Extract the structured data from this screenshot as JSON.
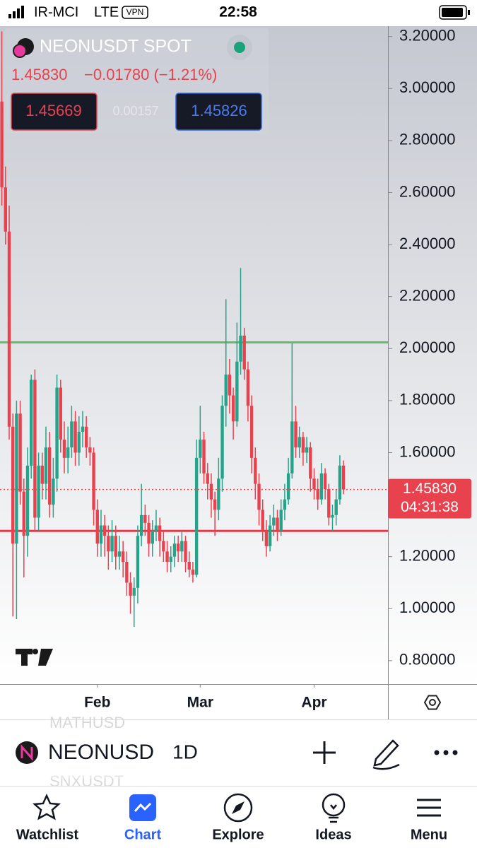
{
  "status_bar": {
    "carrier": "IR-MCI",
    "network": "LTE",
    "vpn": "VPN",
    "time": "22:58"
  },
  "chart_data": {
    "type": "candlestick",
    "symbol": "NEONUSDT SPOT",
    "last_price": {
      "value": 1.4583,
      "label": "1.45830"
    },
    "change": "−0.01780 (−1.21%)",
    "bid": "1.45669",
    "spread": "0.00157",
    "ask": "1.45826",
    "countdown": "04:31:38",
    "up_color": "#26a48b",
    "down_color": "#e8424f",
    "open": [
      2.95,
      2.62,
      2.45,
      1.7,
      1.25,
      1.75,
      1.45,
      1.28,
      1.55,
      1.88,
      1.35,
      1.55,
      1.48,
      1.62,
      1.4,
      1.5,
      1.85,
      1.65,
      1.58,
      1.62,
      1.72,
      1.6,
      1.68,
      1.7,
      1.62,
      1.6,
      1.38,
      1.25,
      1.32,
      1.28,
      1.22,
      1.28,
      1.2,
      1.22,
      1.18,
      1.1,
      1.05,
      1.08,
      1.28,
      1.36,
      1.33,
      1.25,
      1.3,
      1.32,
      1.26,
      1.22,
      1.18,
      1.2,
      1.25,
      1.22,
      1.26,
      1.18,
      1.15,
      1.13,
      1.58,
      1.65,
      1.52,
      1.48,
      1.42,
      1.38,
      1.5,
      1.78,
      1.9,
      1.82,
      1.72,
      1.95,
      2.05,
      1.92,
      1.78,
      1.58,
      1.48,
      1.38,
      1.3,
      1.24,
      1.32,
      1.35,
      1.3,
      1.38,
      1.42,
      1.52,
      1.72,
      1.62,
      1.66,
      1.6,
      1.62,
      1.5,
      1.46,
      1.42,
      1.52,
      1.46,
      1.35,
      1.36,
      1.42,
      1.55
    ],
    "high": [
      3.22,
      2.7,
      2.55,
      1.75,
      1.8,
      1.8,
      1.5,
      1.62,
      1.9,
      1.92,
      1.6,
      1.6,
      1.7,
      1.68,
      1.58,
      1.9,
      1.88,
      1.72,
      1.7,
      1.78,
      1.76,
      1.74,
      1.76,
      1.74,
      1.66,
      1.62,
      1.42,
      1.38,
      1.36,
      1.32,
      1.34,
      1.32,
      1.28,
      1.26,
      1.22,
      1.14,
      1.12,
      1.32,
      1.48,
      1.4,
      1.36,
      1.34,
      1.38,
      1.35,
      1.3,
      1.26,
      1.24,
      1.28,
      1.28,
      1.3,
      1.28,
      1.22,
      1.18,
      1.65,
      1.78,
      1.68,
      1.56,
      1.52,
      1.45,
      1.58,
      1.82,
      2.19,
      1.96,
      1.85,
      2.1,
      2.31,
      2.08,
      1.95,
      1.82,
      1.62,
      1.52,
      1.42,
      1.34,
      1.36,
      1.4,
      1.38,
      1.42,
      1.48,
      1.58,
      2.02,
      1.78,
      1.7,
      1.68,
      1.66,
      1.64,
      1.54,
      1.5,
      1.56,
      1.54,
      1.48,
      1.4,
      1.46,
      1.59,
      1.57
    ],
    "low": [
      2.55,
      2.4,
      1.65,
      0.97,
      0.96,
      1.4,
      1.12,
      1.2,
      1.5,
      1.3,
      1.3,
      1.42,
      1.42,
      1.35,
      1.35,
      1.45,
      1.6,
      1.52,
      1.52,
      1.58,
      1.55,
      1.55,
      1.62,
      1.58,
      1.55,
      1.32,
      1.2,
      1.2,
      1.2,
      1.15,
      1.18,
      1.15,
      1.15,
      1.12,
      1.05,
      0.98,
      0.93,
      1.02,
      1.24,
      1.28,
      1.2,
      1.2,
      1.26,
      1.2,
      1.18,
      1.14,
      1.14,
      1.16,
      1.18,
      1.18,
      1.14,
      1.12,
      1.1,
      1.12,
      1.52,
      1.48,
      1.42,
      1.35,
      1.28,
      1.34,
      1.45,
      1.7,
      1.75,
      1.65,
      1.7,
      1.9,
      1.88,
      1.72,
      1.52,
      1.42,
      1.32,
      1.26,
      1.2,
      1.22,
      1.28,
      1.26,
      1.28,
      1.34,
      1.4,
      1.5,
      1.58,
      1.58,
      1.55,
      1.56,
      1.45,
      1.42,
      1.38,
      1.4,
      1.42,
      1.32,
      1.3,
      1.32,
      1.4,
      1.44
    ],
    "close": [
      2.62,
      2.45,
      1.7,
      1.25,
      1.75,
      1.45,
      1.28,
      1.55,
      1.88,
      1.35,
      1.55,
      1.48,
      1.62,
      1.4,
      1.5,
      1.85,
      1.65,
      1.58,
      1.62,
      1.72,
      1.6,
      1.68,
      1.7,
      1.62,
      1.6,
      1.38,
      1.25,
      1.32,
      1.28,
      1.22,
      1.28,
      1.2,
      1.22,
      1.18,
      1.1,
      1.05,
      1.08,
      1.28,
      1.36,
      1.33,
      1.25,
      1.3,
      1.32,
      1.26,
      1.22,
      1.18,
      1.2,
      1.25,
      1.22,
      1.26,
      1.18,
      1.15,
      1.13,
      1.58,
      1.65,
      1.52,
      1.48,
      1.42,
      1.38,
      1.5,
      1.78,
      1.9,
      1.82,
      1.72,
      1.95,
      2.05,
      1.92,
      1.78,
      1.58,
      1.48,
      1.38,
      1.3,
      1.24,
      1.32,
      1.35,
      1.3,
      1.38,
      1.42,
      1.52,
      1.72,
      1.62,
      1.66,
      1.6,
      1.62,
      1.5,
      1.46,
      1.42,
      1.52,
      1.46,
      1.35,
      1.36,
      1.42,
      1.55,
      1.4583
    ],
    "hlines": [
      {
        "value": 2.024,
        "color": "#5fbf63"
      },
      {
        "value": 1.299,
        "color": "#e23a48"
      }
    ],
    "xlim": [
      -0.5,
      105.1
    ],
    "xticks": [
      {
        "value": 26,
        "label": "Feb"
      },
      {
        "value": 54,
        "label": "Mar"
      },
      {
        "value": 85,
        "label": "Apr"
      }
    ],
    "ylim": [
      0.71,
      3.24
    ],
    "yticks": [
      {
        "value": 0.8,
        "label": "0.80000"
      },
      {
        "value": 1,
        "label": "1.00000"
      },
      {
        "value": 1.2,
        "label": "1.20000"
      },
      {
        "value": 1.4,
        "label": "1.40000"
      },
      {
        "value": 1.6,
        "label": "1.60000"
      },
      {
        "value": 1.8,
        "label": "1.80000"
      },
      {
        "value": 2,
        "label": "2.00000"
      },
      {
        "value": 2.2,
        "label": "2.20000"
      },
      {
        "value": 2.4,
        "label": "2.40000"
      },
      {
        "value": 2.6,
        "label": "2.60000"
      },
      {
        "value": 2.8,
        "label": "2.80000"
      },
      {
        "value": 3,
        "label": "3.00000"
      },
      {
        "value": 3.2,
        "label": "3.20000"
      }
    ]
  },
  "toolbar": {
    "symbol": "NEONUSD",
    "interval": "1D",
    "scroll_hints": [
      "MATHUSD",
      "SNXUSDT"
    ]
  },
  "tabs": [
    "Watchlist",
    "Chart",
    "Explore",
    "Ideas",
    "Menu"
  ]
}
